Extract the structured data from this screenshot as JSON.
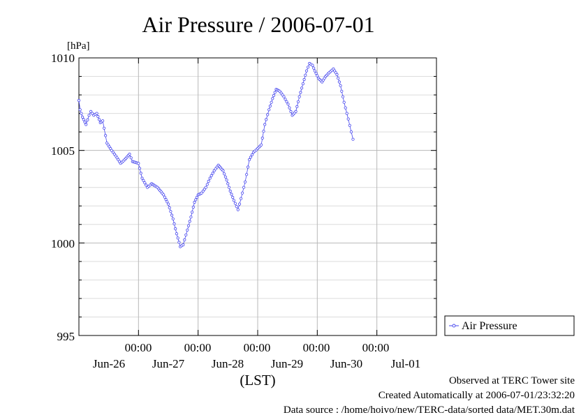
{
  "chart_data": {
    "type": "line",
    "title": "Air Pressure / 2006-07-01",
    "ylabel": "[hPa]",
    "xlabel": "(LST)",
    "ylim": [
      995,
      1010
    ],
    "yticks": [
      "1010",
      "1005",
      "1000",
      "995"
    ],
    "xlim_days": [
      0,
      6
    ],
    "xticks": [
      {
        "time": "00:00",
        "date": "Jun-26"
      },
      {
        "time": "00:00",
        "date": "Jun-27"
      },
      {
        "time": "00:00",
        "date": "Jun-28"
      },
      {
        "time": "00:00",
        "date": "Jun-29"
      },
      {
        "time": "00:00",
        "date": "Jun-30"
      },
      {
        "time": "",
        "date": "Jul-01"
      }
    ],
    "grid": true,
    "legend_position": "right",
    "line_color": "#4444ee",
    "series": [
      {
        "name": "Air Pressure",
        "keypoints": [
          [
            0.0,
            1007.7
          ],
          [
            0.02,
            1007.2
          ],
          [
            0.06,
            1006.8
          ],
          [
            0.12,
            1006.4
          ],
          [
            0.17,
            1006.9
          ],
          [
            0.2,
            1007.1
          ],
          [
            0.25,
            1006.9
          ],
          [
            0.3,
            1007.0
          ],
          [
            0.36,
            1006.5
          ],
          [
            0.4,
            1006.6
          ],
          [
            0.47,
            1005.4
          ],
          [
            0.55,
            1005.0
          ],
          [
            0.62,
            1004.7
          ],
          [
            0.7,
            1004.3
          ],
          [
            0.77,
            1004.5
          ],
          [
            0.85,
            1004.8
          ],
          [
            0.9,
            1004.4
          ],
          [
            1.0,
            1004.3
          ],
          [
            1.06,
            1003.5
          ],
          [
            1.15,
            1003.0
          ],
          [
            1.22,
            1003.2
          ],
          [
            1.32,
            1003.0
          ],
          [
            1.42,
            1002.6
          ],
          [
            1.5,
            1002.1
          ],
          [
            1.58,
            1001.3
          ],
          [
            1.64,
            1000.5
          ],
          [
            1.7,
            999.8
          ],
          [
            1.75,
            999.9
          ],
          [
            1.82,
            1000.7
          ],
          [
            1.88,
            1001.4
          ],
          [
            1.94,
            1002.2
          ],
          [
            2.0,
            1002.6
          ],
          [
            2.06,
            1002.7
          ],
          [
            2.13,
            1003.0
          ],
          [
            2.2,
            1003.5
          ],
          [
            2.27,
            1003.9
          ],
          [
            2.34,
            1004.2
          ],
          [
            2.42,
            1003.9
          ],
          [
            2.48,
            1003.4
          ],
          [
            2.54,
            1002.8
          ],
          [
            2.6,
            1002.3
          ],
          [
            2.67,
            1001.8
          ],
          [
            2.72,
            1002.4
          ],
          [
            2.79,
            1003.3
          ],
          [
            2.86,
            1004.5
          ],
          [
            2.93,
            1004.9
          ],
          [
            3.0,
            1005.1
          ],
          [
            3.06,
            1005.3
          ],
          [
            3.12,
            1006.4
          ],
          [
            3.19,
            1007.2
          ],
          [
            3.25,
            1007.8
          ],
          [
            3.31,
            1008.3
          ],
          [
            3.37,
            1008.2
          ],
          [
            3.44,
            1007.9
          ],
          [
            3.51,
            1007.5
          ],
          [
            3.58,
            1006.9
          ],
          [
            3.64,
            1007.1
          ],
          [
            3.7,
            1007.9
          ],
          [
            3.76,
            1008.6
          ],
          [
            3.82,
            1009.3
          ],
          [
            3.87,
            1009.7
          ],
          [
            3.92,
            1009.6
          ],
          [
            3.96,
            1009.3
          ],
          [
            4.02,
            1008.9
          ],
          [
            4.08,
            1008.7
          ],
          [
            4.14,
            1009.0
          ],
          [
            4.2,
            1009.2
          ],
          [
            4.27,
            1009.4
          ],
          [
            4.33,
            1009.1
          ],
          [
            4.39,
            1008.5
          ],
          [
            4.45,
            1007.6
          ],
          [
            4.52,
            1006.7
          ],
          [
            4.57,
            1006.0
          ],
          [
            4.6,
            1005.6
          ]
        ]
      }
    ]
  },
  "footer": {
    "observed": "Observed at TERC Tower site",
    "created": "Created Automatically at 2006-07-01/23:32:20",
    "source": "Data source : /home/hoivo/new/TERC-data/sorted  data/MET.30m.dat"
  }
}
